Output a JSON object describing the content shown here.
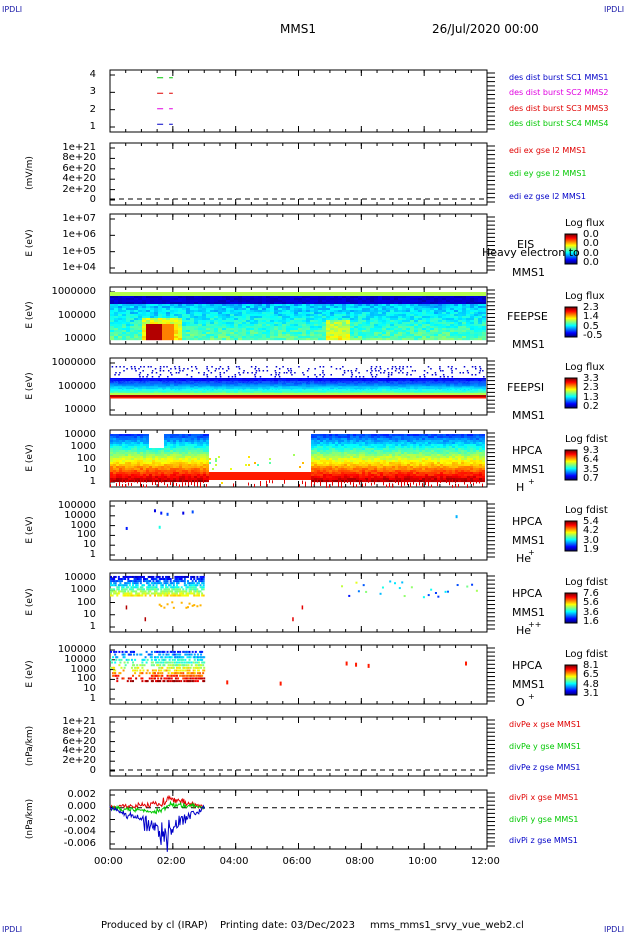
{
  "corners": {
    "tl": "IPDLI",
    "tr": "IPDLI",
    "bl": "IPDLI",
    "br": "IPDLI"
  },
  "header": {
    "spacecraft": "MMS1",
    "datetime": "26/Jul/2020 00:00"
  },
  "footer": {
    "producer": "Produced by cl (IRAP)",
    "printing": "Printing date: 03/Dec/2023",
    "file": "mms_mms1_srvy_vue_web2.cl"
  },
  "colors": {
    "mms1": "#0000c8",
    "mms2": "#e000e0",
    "mms3": "#e00000",
    "mms4": "#00c800",
    "x": "#e00000",
    "y": "#00c800",
    "z": "#0000c8"
  },
  "x_ticks": [
    "00:00",
    "02:00",
    "04:00",
    "06:00",
    "08:00",
    "10:00",
    "12:00"
  ],
  "panels": {
    "p1": {
      "ticks": [
        "4",
        "3",
        "2",
        "1"
      ],
      "legend": [
        "des dist burst SC1 MMS1",
        "des dist burst SC2 MMS2",
        "des dist burst SC3 MMS3",
        "des dist burst SC4 MMS4"
      ]
    },
    "p2": {
      "ylabel": "(mV/m)",
      "ticks": [
        "1e+21",
        "8e+20",
        "6e+20",
        "4e+20",
        "2e+20",
        "0"
      ],
      "legend": [
        "edi ex gse l2 MMS1",
        "edi ey gse l2 MMS1",
        "edi ez gse l2 MMS1"
      ]
    },
    "p3": {
      "ylabel": "E (eV)",
      "ticks": [
        "1e+07",
        "1e+06",
        "1e+05",
        "1e+04"
      ],
      "side": [
        "EIS",
        "Heavy electron to",
        "MMS1"
      ],
      "cb_title": "Log flux",
      "cb_values": [
        "0.0",
        "0.0",
        "0.0",
        "0.0"
      ]
    },
    "p4": {
      "ylabel": "E (eV)",
      "ticks": [
        "1000000",
        "100000",
        "10000"
      ],
      "side": [
        "FEEPSE",
        "MMS1"
      ],
      "cb_title": "Log flux",
      "cb_values": [
        "2.3",
        "1.4",
        "0.5",
        "-0.5"
      ]
    },
    "p5": {
      "ylabel": "E (eV)",
      "ticks": [
        "1000000",
        "100000",
        "10000"
      ],
      "side": [
        "FEEPSI",
        "MMS1"
      ],
      "cb_title": "Log flux",
      "cb_values": [
        "3.3",
        "2.3",
        "1.3",
        "0.2"
      ]
    },
    "p6": {
      "ylabel": "E (eV)",
      "ticks": [
        "10000",
        "1000",
        "100",
        "10",
        "1"
      ],
      "side": [
        "HPCA",
        "MMS1",
        "H",
        "+"
      ],
      "cb_title": "Log fdist",
      "cb_values": [
        "9.3",
        "6.4",
        "3.5",
        "0.7"
      ]
    },
    "p7": {
      "ylabel": "E (eV)",
      "ticks": [
        "100000",
        "10000",
        "1000",
        "100",
        "10",
        "1"
      ],
      "side": [
        "HPCA",
        "MMS1",
        "He",
        "+"
      ],
      "cb_title": "Log fdist",
      "cb_values": [
        "5.4",
        "4.2",
        "3.0",
        "1.9"
      ]
    },
    "p8": {
      "ylabel": "E (eV)",
      "ticks": [
        "10000",
        "1000",
        "100",
        "10",
        "1"
      ],
      "side": [
        "HPCA",
        "MMS1",
        "He",
        "++"
      ],
      "cb_title": "Log fdist",
      "cb_values": [
        "7.6",
        "5.6",
        "3.6",
        "1.6"
      ]
    },
    "p9": {
      "ylabel": "E (eV)",
      "ticks": [
        "100000",
        "10000",
        "1000",
        "100",
        "10",
        "1"
      ],
      "side": [
        "HPCA",
        "MMS1",
        "O",
        "+"
      ],
      "cb_title": "Log fdist",
      "cb_values": [
        "8.1",
        "6.5",
        "4.8",
        "3.1"
      ]
    },
    "p10": {
      "ylabel": "(nPa/km)",
      "ticks": [
        "1e+21",
        "8e+20",
        "6e+20",
        "4e+20",
        "2e+20",
        "0"
      ],
      "legend": [
        "divPe x gse MMS1",
        "divPe y gse MMS1",
        "divPe z gse MMS1"
      ]
    },
    "p11": {
      "ylabel": "(nPa/km)",
      "ticks": [
        "0.002",
        "0.000",
        "-0.002",
        "-0.004",
        "-0.006"
      ],
      "legend": [
        "divPi x gse MMS1",
        "divPi y gse MMS1",
        "divPi z gse MMS1"
      ]
    }
  },
  "chart_data": [
    {
      "type": "scatter",
      "xlim": [
        "00:00",
        "12:00"
      ],
      "ylim": [
        0.5,
        4.5
      ],
      "series": [
        {
          "name": "des dist burst SC1 MMS1",
          "x": [
            "01:30",
            "02:00"
          ],
          "y": [
            1,
            1
          ]
        },
        {
          "name": "des dist burst SC2 MMS2",
          "x": [
            "01:30",
            "02:00"
          ],
          "y": [
            2,
            2
          ]
        },
        {
          "name": "des dist burst SC3 MMS3",
          "x": [
            "01:30",
            "02:00"
          ],
          "y": [
            3,
            3
          ]
        },
        {
          "name": "des dist burst SC4 MMS4",
          "x": [
            "01:30",
            "02:00"
          ],
          "y": [
            4,
            4
          ]
        }
      ]
    },
    {
      "type": "line",
      "ylim": [
        0,
        1e+21
      ],
      "series": [
        {
          "name": "edi ex gse l2 MMS1",
          "values": []
        },
        {
          "name": "edi ey gse l2 MMS1",
          "values": []
        },
        {
          "name": "edi ez gse l2 MMS1",
          "values": []
        }
      ]
    },
    {
      "type": "heatmap",
      "ylim": [
        10000.0,
        10000000.0
      ],
      "scale": "log",
      "values": []
    },
    {
      "type": "heatmap",
      "ylim": [
        10000.0,
        1000000.0
      ],
      "scale": "log",
      "colorbar": [
        2.3,
        1.4,
        0.5,
        -0.5
      ]
    },
    {
      "type": "heatmap",
      "ylim": [
        10000.0,
        1000000.0
      ],
      "scale": "log",
      "colorbar": [
        3.3,
        2.3,
        1.3,
        0.2
      ]
    },
    {
      "type": "heatmap",
      "ylim": [
        1,
        10000.0
      ],
      "scale": "log",
      "colorbar": [
        9.3,
        6.4,
        3.5,
        0.7
      ]
    },
    {
      "type": "heatmap",
      "ylim": [
        1,
        100000.0
      ],
      "scale": "log",
      "colorbar": [
        5.4,
        4.2,
        3.0,
        1.9
      ]
    },
    {
      "type": "heatmap",
      "ylim": [
        1,
        10000.0
      ],
      "scale": "log",
      "colorbar": [
        7.6,
        5.6,
        3.6,
        1.6
      ]
    },
    {
      "type": "heatmap",
      "ylim": [
        1,
        100000.0
      ],
      "scale": "log",
      "colorbar": [
        8.1,
        6.5,
        4.8,
        3.1
      ]
    },
    {
      "type": "line",
      "ylim": [
        0,
        1e+21
      ],
      "series": [
        {
          "name": "divPe x gse MMS1",
          "values": []
        },
        {
          "name": "divPe y gse MMS1",
          "values": []
        },
        {
          "name": "divPe z gse MMS1",
          "values": []
        }
      ]
    },
    {
      "type": "line",
      "ylim": [
        -0.007,
        0.003
      ],
      "series": [
        {
          "name": "divPi x gse MMS1",
          "x": [
            "00:00",
            "01:30",
            "02:00",
            "03:00"
          ],
          "y": [
            0.0,
            0.001,
            0.002,
            0.0
          ]
        },
        {
          "name": "divPi y gse MMS1",
          "x": [
            "00:00",
            "01:30",
            "02:00",
            "03:00"
          ],
          "y": [
            0.0,
            -0.001,
            0.001,
            0.0
          ]
        },
        {
          "name": "divPi z gse MMS1",
          "x": [
            "00:00",
            "01:50",
            "02:00",
            "03:00"
          ],
          "y": [
            0.0,
            -0.006,
            -0.004,
            0.0
          ]
        }
      ]
    }
  ]
}
